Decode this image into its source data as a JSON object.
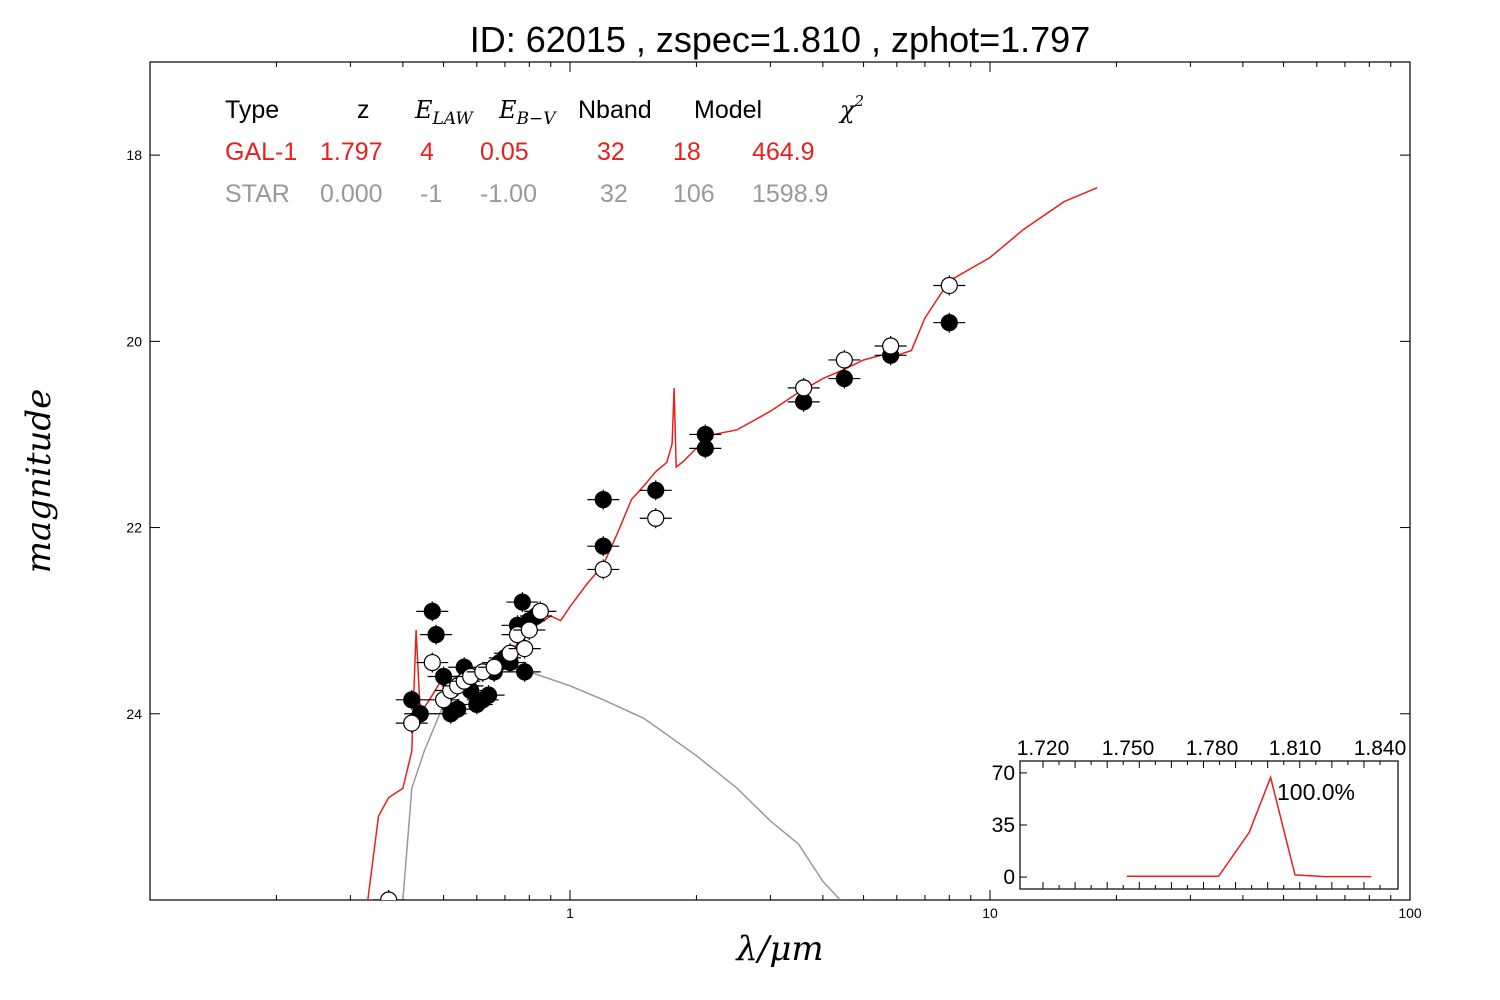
{
  "title": "ID:  62015 , zspec=1.810 , zphot=1.797",
  "xlabel": "λ/μm",
  "ylabel": "magnitude",
  "colors": {
    "galaxy": "#e8201c",
    "star": "#999999",
    "axis": "#000000"
  },
  "fit_table": {
    "headers": [
      "Type",
      "z",
      "E",
      "E",
      "Nband",
      "Model",
      "χ"
    ],
    "header_subscripts": [
      "LAW",
      "B−V"
    ],
    "header_superscript": "2",
    "rows": [
      {
        "type": "GAL-1",
        "z": "1.797",
        "elaw": "4",
        "ebv": "0.05",
        "nband": "32",
        "model": "18",
        "chi2": "464.9",
        "color": "#e8201c"
      },
      {
        "type": "STAR",
        "z": "0.000",
        "elaw": "-1",
        "ebv": "-1.00",
        "nband": "32",
        "model": "106",
        "chi2": "1598.9",
        "color": "#999999"
      }
    ]
  },
  "chart_data": {
    "type": "scatter",
    "xscale": "log",
    "xlim": [
      0.1,
      100
    ],
    "ylim": [
      26,
      17
    ],
    "x_tick_labels": [
      "1",
      "10",
      "100"
    ],
    "y_tick_labels": [
      "18",
      "20",
      "22",
      "24"
    ],
    "grid": false,
    "series": [
      {
        "kind": "line",
        "color": "#e8201c",
        "points": [
          [
            0.33,
            26
          ],
          [
            0.35,
            25.1
          ],
          [
            0.37,
            24.9
          ],
          [
            0.4,
            24.8
          ],
          [
            0.42,
            24.4
          ],
          [
            0.43,
            23.1
          ],
          [
            0.44,
            24.0
          ],
          [
            0.47,
            23.8
          ],
          [
            0.5,
            23.6
          ],
          [
            0.55,
            23.6
          ],
          [
            0.6,
            23.5
          ],
          [
            0.7,
            23.4
          ],
          [
            0.8,
            23.1
          ],
          [
            0.9,
            22.95
          ],
          [
            0.95,
            23.0
          ],
          [
            1.0,
            22.85
          ],
          [
            1.1,
            22.6
          ],
          [
            1.2,
            22.4
          ],
          [
            1.3,
            22.05
          ],
          [
            1.4,
            21.7
          ],
          [
            1.5,
            21.55
          ],
          [
            1.6,
            21.4
          ],
          [
            1.7,
            21.3
          ],
          [
            1.75,
            21.1
          ],
          [
            1.77,
            20.5
          ],
          [
            1.79,
            21.35
          ],
          [
            1.85,
            21.3
          ],
          [
            2.0,
            21.15
          ],
          [
            2.2,
            21.0
          ],
          [
            2.5,
            20.95
          ],
          [
            3.0,
            20.75
          ],
          [
            3.5,
            20.55
          ],
          [
            4.0,
            20.4
          ],
          [
            4.5,
            20.3
          ],
          [
            5.0,
            20.2
          ],
          [
            5.5,
            20.15
          ],
          [
            6.0,
            20.15
          ],
          [
            6.5,
            20.1
          ],
          [
            7.0,
            19.75
          ],
          [
            8.0,
            19.35
          ],
          [
            10.0,
            19.1
          ],
          [
            12.0,
            18.8
          ],
          [
            15.0,
            18.5
          ],
          [
            18.0,
            18.35
          ]
        ]
      },
      {
        "kind": "line",
        "color": "#999999",
        "points": [
          [
            0.4,
            26
          ],
          [
            0.42,
            24.8
          ],
          [
            0.45,
            24.4
          ],
          [
            0.5,
            23.9
          ],
          [
            0.55,
            23.7
          ],
          [
            0.6,
            23.55
          ],
          [
            0.7,
            23.5
          ],
          [
            0.8,
            23.55
          ],
          [
            1.0,
            23.7
          ],
          [
            1.2,
            23.85
          ],
          [
            1.5,
            24.05
          ],
          [
            2.0,
            24.45
          ],
          [
            2.5,
            24.8
          ],
          [
            3.0,
            25.15
          ],
          [
            3.5,
            25.4
          ],
          [
            4.0,
            25.8
          ],
          [
            4.4,
            26.0
          ]
        ]
      },
      {
        "kind": "points",
        "name": "observed",
        "marker": "filled",
        "points": [
          [
            0.42,
            23.85
          ],
          [
            0.44,
            24.0
          ],
          [
            0.47,
            22.9
          ],
          [
            0.48,
            23.15
          ],
          [
            0.5,
            23.6
          ],
          [
            0.52,
            24.0
          ],
          [
            0.54,
            23.95
          ],
          [
            0.56,
            23.5
          ],
          [
            0.57,
            23.7
          ],
          [
            0.58,
            23.75
          ],
          [
            0.6,
            23.9
          ],
          [
            0.62,
            23.85
          ],
          [
            0.64,
            23.8
          ],
          [
            0.66,
            23.55
          ],
          [
            0.68,
            23.45
          ],
          [
            0.7,
            23.4
          ],
          [
            0.72,
            23.45
          ],
          [
            0.75,
            23.05
          ],
          [
            0.77,
            22.8
          ],
          [
            0.78,
            23.55
          ],
          [
            0.8,
            23.0
          ],
          [
            0.83,
            22.95
          ],
          [
            1.2,
            21.7
          ],
          [
            1.2,
            22.2
          ],
          [
            1.6,
            21.6
          ],
          [
            2.1,
            21.0
          ],
          [
            2.1,
            21.15
          ],
          [
            3.6,
            20.65
          ],
          [
            4.5,
            20.4
          ],
          [
            5.8,
            20.15
          ],
          [
            8.0,
            19.8
          ]
        ]
      },
      {
        "kind": "points",
        "name": "model",
        "marker": "open",
        "points": [
          [
            0.37,
            26.0
          ],
          [
            0.42,
            24.1
          ],
          [
            0.47,
            23.45
          ],
          [
            0.5,
            23.85
          ],
          [
            0.52,
            23.75
          ],
          [
            0.54,
            23.7
          ],
          [
            0.56,
            23.65
          ],
          [
            0.58,
            23.6
          ],
          [
            0.62,
            23.55
          ],
          [
            0.66,
            23.5
          ],
          [
            0.72,
            23.35
          ],
          [
            0.75,
            23.15
          ],
          [
            0.78,
            23.3
          ],
          [
            0.8,
            23.1
          ],
          [
            0.85,
            22.9
          ],
          [
            1.2,
            22.45
          ],
          [
            1.6,
            21.9
          ],
          [
            3.6,
            20.5
          ],
          [
            4.5,
            20.2
          ],
          [
            5.8,
            20.05
          ],
          [
            8.0,
            19.4
          ]
        ]
      }
    ],
    "inset": {
      "type": "line",
      "x_tick_labels": [
        "1.720",
        "1.750",
        "1.780",
        "1.810",
        "1.840"
      ],
      "y_tick_labels": [
        "0",
        "35",
        "70"
      ],
      "xlim": [
        1.72,
        1.84
      ],
      "ylim": [
        -8,
        78
      ],
      "points": [
        [
          1.755,
          0.5
        ],
        [
          1.785,
          0.5
        ],
        [
          1.795,
          30
        ],
        [
          1.802,
          67
        ],
        [
          1.81,
          1.5
        ],
        [
          1.82,
          0.3
        ],
        [
          1.835,
          0.3
        ]
      ],
      "annotation": "100.0%",
      "color": "#e8201c"
    }
  }
}
